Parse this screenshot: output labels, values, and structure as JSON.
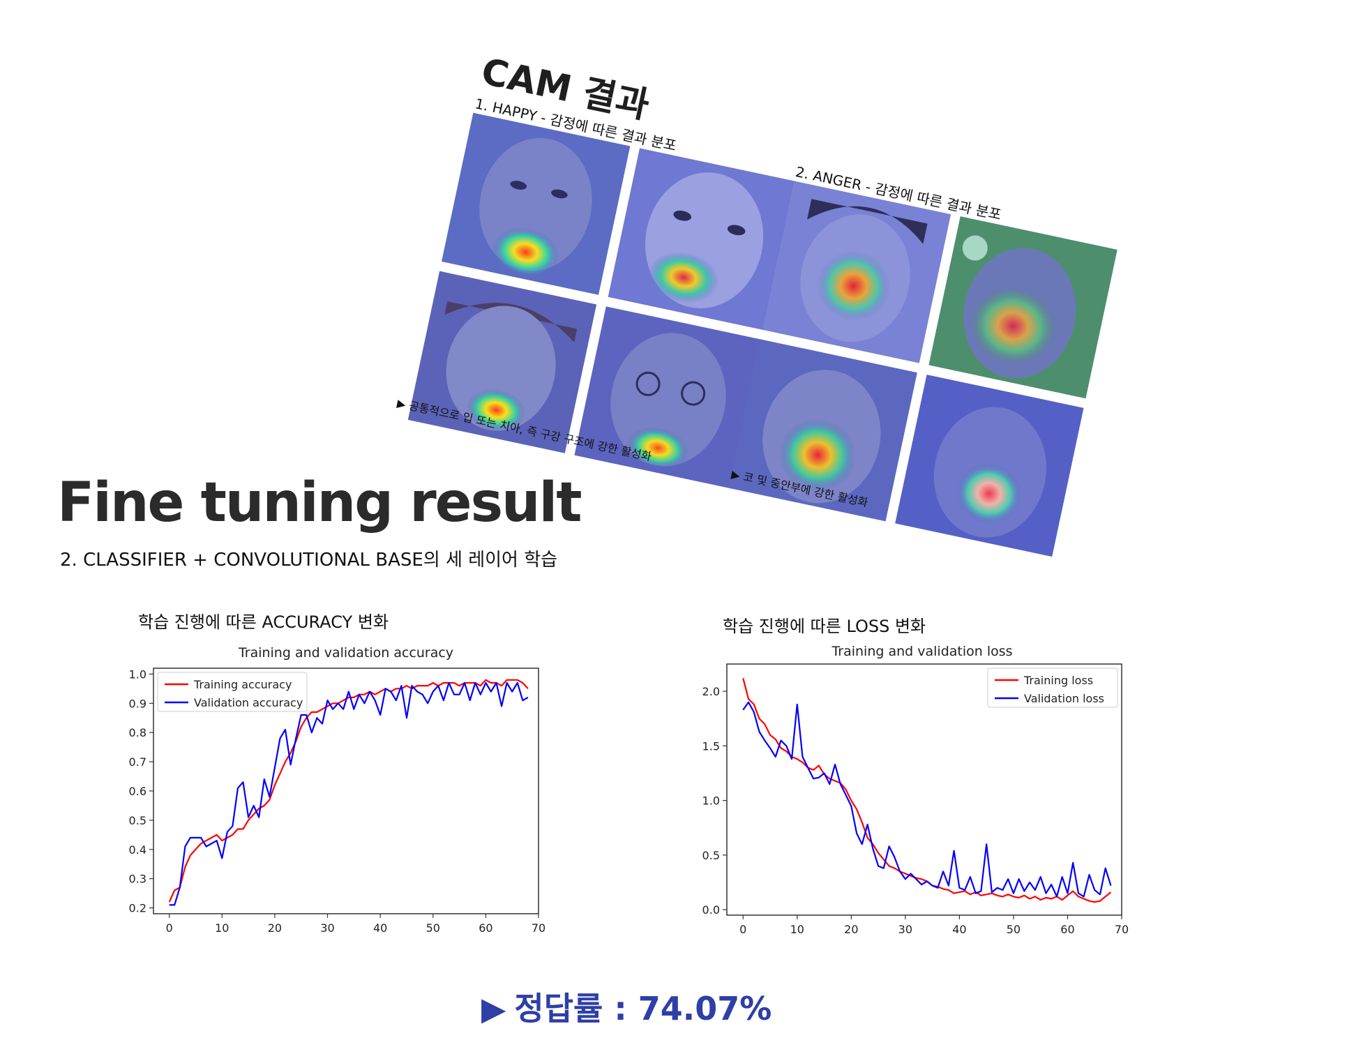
{
  "fine_tuning": {
    "title": "Fine tuning result",
    "subtitle": "2. CLASSIFIER + CONVOLUTIONAL BASE의 세 레이어 학습",
    "accuracy_heading": "학습 진행에 따른 ACCURACY 변화",
    "loss_heading": "학습 진행에 따른 LOSS 변화",
    "result_text": "정답률 : 74.07%",
    "result_marker": "▶"
  },
  "cam": {
    "title": "CAM 결과",
    "happy_label": "1. HAPPY - 감정에 따른 결과 분포",
    "anger_label": "2. ANGER - 감정에 따른 결과 분포",
    "happy_note": "▶ 공통적으로 입 또는 치아, 즉 구강 구조에 강한 활성화",
    "anger_note": "▶ 코 및 중안부에 강한 활성화",
    "happy_faces": [
      "happy-face-1",
      "happy-face-2",
      "happy-face-3",
      "happy-face-4"
    ],
    "anger_faces": [
      "anger-face-1",
      "anger-face-2",
      "anger-face-3",
      "anger-face-4"
    ]
  },
  "colors": {
    "training": "#ff0000",
    "validation": "#0000ff",
    "accent": "#2e3fa6"
  },
  "chart_data": [
    {
      "type": "line",
      "title": "Training and validation accuracy",
      "xlabel": "",
      "ylabel": "",
      "xlim": [
        -3,
        70
      ],
      "ylim": [
        0.18,
        1.02
      ],
      "xticks": [
        0,
        10,
        20,
        30,
        40,
        50,
        60,
        70
      ],
      "yticks": [
        0.2,
        0.3,
        0.4,
        0.5,
        0.6,
        0.7,
        0.8,
        0.9,
        1.0
      ],
      "legend_position": "upper-left",
      "series": [
        {
          "name": "Training accuracy",
          "color": "#ff0000",
          "values": [
            0.22,
            0.26,
            0.27,
            0.34,
            0.38,
            0.4,
            0.42,
            0.43,
            0.44,
            0.45,
            0.43,
            0.44,
            0.45,
            0.47,
            0.47,
            0.5,
            0.52,
            0.54,
            0.55,
            0.57,
            0.62,
            0.66,
            0.7,
            0.73,
            0.77,
            0.82,
            0.85,
            0.87,
            0.87,
            0.88,
            0.89,
            0.9,
            0.9,
            0.91,
            0.92,
            0.92,
            0.93,
            0.93,
            0.94,
            0.93,
            0.94,
            0.95,
            0.94,
            0.95,
            0.95,
            0.96,
            0.95,
            0.96,
            0.96,
            0.96,
            0.97,
            0.96,
            0.97,
            0.97,
            0.97,
            0.96,
            0.97,
            0.97,
            0.97,
            0.96,
            0.98,
            0.97,
            0.97,
            0.96,
            0.98,
            0.98,
            0.98,
            0.97,
            0.95
          ]
        },
        {
          "name": "Validation accuracy",
          "color": "#0000ff",
          "values": [
            0.21,
            0.21,
            0.27,
            0.41,
            0.44,
            0.44,
            0.44,
            0.41,
            0.42,
            0.43,
            0.37,
            0.46,
            0.48,
            0.61,
            0.63,
            0.51,
            0.55,
            0.51,
            0.64,
            0.58,
            0.68,
            0.78,
            0.81,
            0.69,
            0.78,
            0.86,
            0.86,
            0.8,
            0.85,
            0.83,
            0.91,
            0.88,
            0.9,
            0.88,
            0.94,
            0.88,
            0.93,
            0.9,
            0.94,
            0.91,
            0.86,
            0.95,
            0.94,
            0.91,
            0.96,
            0.85,
            0.96,
            0.94,
            0.93,
            0.9,
            0.94,
            0.96,
            0.91,
            0.97,
            0.93,
            0.93,
            0.97,
            0.91,
            0.97,
            0.93,
            0.97,
            0.94,
            0.97,
            0.89,
            0.97,
            0.94,
            0.97,
            0.91,
            0.92
          ]
        }
      ]
    },
    {
      "type": "line",
      "title": "Training and validation loss",
      "xlabel": "",
      "ylabel": "",
      "xlim": [
        -3,
        70
      ],
      "ylim": [
        -0.05,
        2.25
      ],
      "xticks": [
        0,
        10,
        20,
        30,
        40,
        50,
        60,
        70
      ],
      "yticks": [
        0.0,
        0.5,
        1.0,
        1.5,
        2.0
      ],
      "legend_position": "upper-right",
      "series": [
        {
          "name": "Training loss",
          "color": "#ff0000",
          "values": [
            2.12,
            1.93,
            1.88,
            1.75,
            1.7,
            1.6,
            1.56,
            1.48,
            1.45,
            1.4,
            1.38,
            1.35,
            1.3,
            1.28,
            1.32,
            1.24,
            1.2,
            1.18,
            1.16,
            1.1,
            1.0,
            0.92,
            0.8,
            0.66,
            0.6,
            0.52,
            0.46,
            0.4,
            0.38,
            0.35,
            0.33,
            0.31,
            0.29,
            0.28,
            0.26,
            0.22,
            0.21,
            0.19,
            0.18,
            0.15,
            0.16,
            0.17,
            0.14,
            0.16,
            0.13,
            0.14,
            0.15,
            0.13,
            0.12,
            0.14,
            0.12,
            0.11,
            0.13,
            0.1,
            0.12,
            0.09,
            0.11,
            0.1,
            0.12,
            0.09,
            0.13,
            0.17,
            0.12,
            0.1,
            0.08,
            0.07,
            0.08,
            0.12,
            0.16
          ]
        },
        {
          "name": "Validation loss",
          "color": "#0000ff",
          "values": [
            1.83,
            1.9,
            1.81,
            1.63,
            1.55,
            1.48,
            1.4,
            1.55,
            1.5,
            1.38,
            1.88,
            1.4,
            1.3,
            1.2,
            1.21,
            1.25,
            1.15,
            1.33,
            1.15,
            1.05,
            0.95,
            0.7,
            0.6,
            0.78,
            0.56,
            0.4,
            0.38,
            0.58,
            0.48,
            0.35,
            0.28,
            0.33,
            0.28,
            0.23,
            0.26,
            0.22,
            0.2,
            0.35,
            0.22,
            0.54,
            0.2,
            0.18,
            0.3,
            0.15,
            0.17,
            0.6,
            0.16,
            0.2,
            0.18,
            0.28,
            0.15,
            0.28,
            0.17,
            0.25,
            0.18,
            0.3,
            0.15,
            0.23,
            0.12,
            0.3,
            0.15,
            0.43,
            0.15,
            0.12,
            0.32,
            0.18,
            0.14,
            0.38,
            0.22
          ]
        }
      ]
    }
  ]
}
